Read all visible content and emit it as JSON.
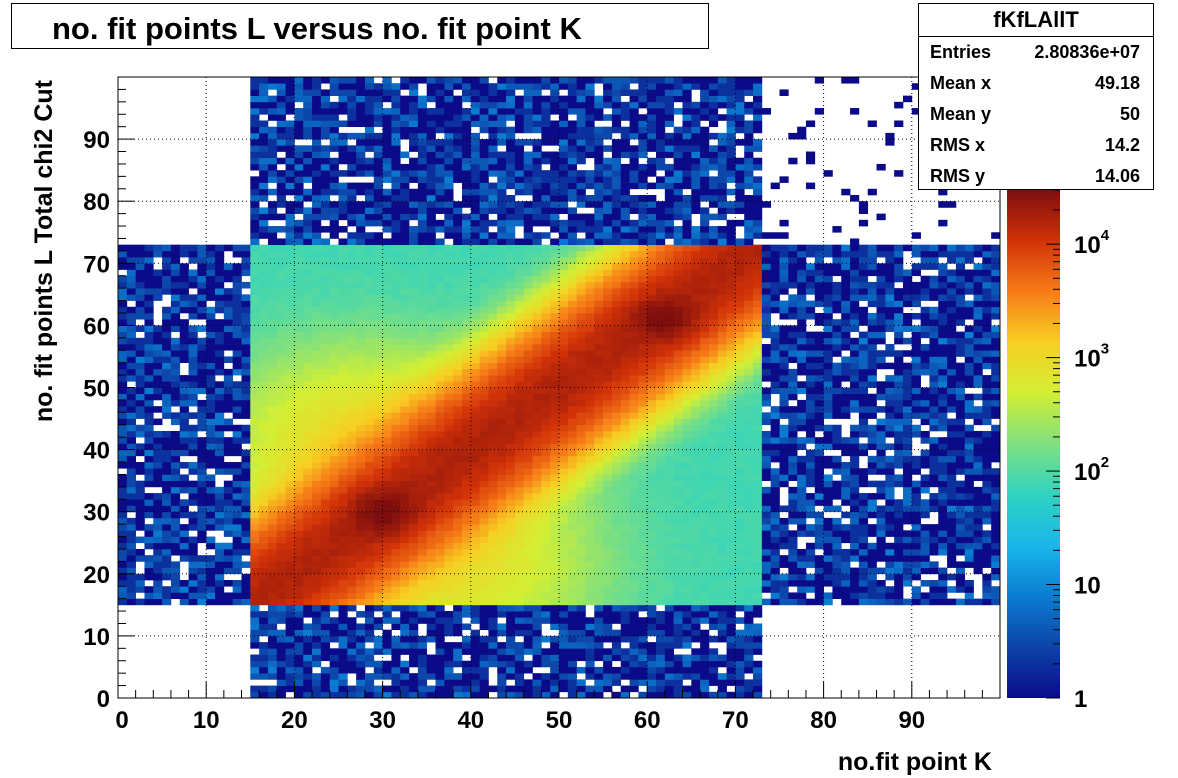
{
  "chart_data": {
    "type": "heatmap",
    "title": "no. fit points L versus no. fit point K",
    "xlabel": "no.fit point K",
    "ylabel": "no. fit points  L   Total chi2 Cut",
    "xlim": [
      0,
      100
    ],
    "ylim": [
      0,
      100
    ],
    "x_ticks": [
      0,
      10,
      20,
      30,
      40,
      50,
      60,
      70,
      80,
      90
    ],
    "y_ticks": [
      0,
      10,
      20,
      30,
      40,
      50,
      60,
      70,
      80,
      90
    ],
    "grid": true,
    "bin_width": 1,
    "z_scale": "log",
    "z_range": [
      1,
      30000
    ],
    "colorbar_ticks": [
      {
        "value": 1,
        "base": "1",
        "exp": ""
      },
      {
        "value": 10,
        "base": "10",
        "exp": ""
      },
      {
        "value": 100,
        "base": "10",
        "exp": "2"
      },
      {
        "value": 1000,
        "base": "10",
        "exp": "3"
      },
      {
        "value": 10000,
        "base": "10",
        "exp": "4"
      }
    ],
    "regions": [
      {
        "name": "dense core",
        "x": [
          15,
          73
        ],
        "y": [
          15,
          73
        ],
        "floor": 80,
        "diagonal_peak": 16000,
        "peaks": [
          {
            "x": 30,
            "y": 30,
            "value": 30000
          },
          {
            "x": 62,
            "y": 61,
            "value": 30000
          }
        ]
      },
      {
        "name": "sparse top band",
        "x": [
          15,
          73
        ],
        "y": [
          73,
          100
        ],
        "typical": "1-5"
      },
      {
        "name": "sparse right band",
        "x": [
          73,
          100
        ],
        "y": [
          15,
          73
        ],
        "typical": "1-5"
      },
      {
        "name": "very sparse corner",
        "x": [
          73,
          100
        ],
        "y": [
          73,
          100
        ],
        "typical": "0-2"
      }
    ]
  },
  "stats": {
    "name": "fKfLAllT",
    "rows": [
      {
        "key": "Entries",
        "value": "2.80836e+07"
      },
      {
        "key": "Mean x",
        "value": "49.18"
      },
      {
        "key": "Mean y",
        "value": "50"
      },
      {
        "key": "RMS x",
        "value": "14.2"
      },
      {
        "key": "RMS y",
        "value": "14.06"
      }
    ]
  },
  "colors": {
    "palette": [
      "#0b0b8a",
      "#0d43a8",
      "#0b7cd1",
      "#19b7ea",
      "#2fd3c0",
      "#7fe07f",
      "#d2ef34",
      "#f7cf22",
      "#f77c17",
      "#d23208",
      "#7d0e0e"
    ]
  }
}
